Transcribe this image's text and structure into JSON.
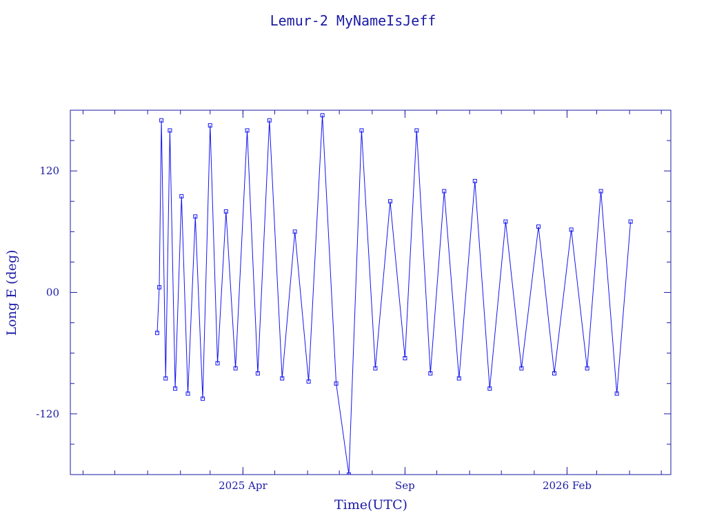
{
  "chart_data": {
    "type": "scatter",
    "title": "Lemur-2 MyNameIsJeff",
    "xlabel": "Time(UTC)",
    "ylabel": "Long E (deg)",
    "ylim": [
      -180,
      180
    ],
    "xlim": [
      "2024-10-20",
      "2026-05-10"
    ],
    "yticks": [
      {
        "value": 120,
        "label": "120"
      },
      {
        "value": 0,
        "label": "00"
      },
      {
        "value": -120,
        "label": "-120"
      }
    ],
    "xticks": [
      {
        "date": "2025-04-01",
        "label": "2025 Apr"
      },
      {
        "date": "2025-09-01",
        "label": "Sep"
      },
      {
        "date": "2026-02-01",
        "label": "2026 Feb"
      }
    ],
    "grid": false,
    "color": "#1414f0",
    "axis_color": "#1a1aa6",
    "series": [
      {
        "x": [
          "2025-01-10",
          "2025-01-12",
          "2025-01-14",
          "2025-01-18",
          "2025-01-22",
          "2025-01-27",
          "2025-02-02",
          "2025-02-08",
          "2025-02-15",
          "2025-02-22",
          "2025-03-01",
          "2025-03-08",
          "2025-03-16",
          "2025-03-25",
          "2025-04-05",
          "2025-04-15",
          "2025-04-26",
          "2025-05-08",
          "2025-05-20",
          "2025-06-02",
          "2025-06-15",
          "2025-06-28",
          "2025-07-10",
          "2025-07-22",
          "2025-08-04",
          "2025-08-18",
          "2025-09-01",
          "2025-09-12",
          "2025-09-25",
          "2025-10-08",
          "2025-10-22",
          "2025-11-06",
          "2025-11-20",
          "2025-12-05",
          "2025-12-20",
          "2026-01-05",
          "2026-01-20",
          "2026-02-05",
          "2026-02-20",
          "2026-03-05",
          "2026-03-20",
          "2026-04-02"
        ],
        "y": [
          -40,
          5,
          170,
          -85,
          160,
          -95,
          95,
          -100,
          75,
          -105,
          165,
          -70,
          80,
          -75,
          160,
          -80,
          170,
          -85,
          60,
          -88,
          175,
          -90,
          -180,
          160,
          -75,
          90,
          -65,
          160,
          -80,
          100,
          -85,
          110,
          -95,
          70,
          -75,
          65,
          -80,
          62,
          -75,
          100,
          -100,
          70
        ]
      }
    ]
  }
}
